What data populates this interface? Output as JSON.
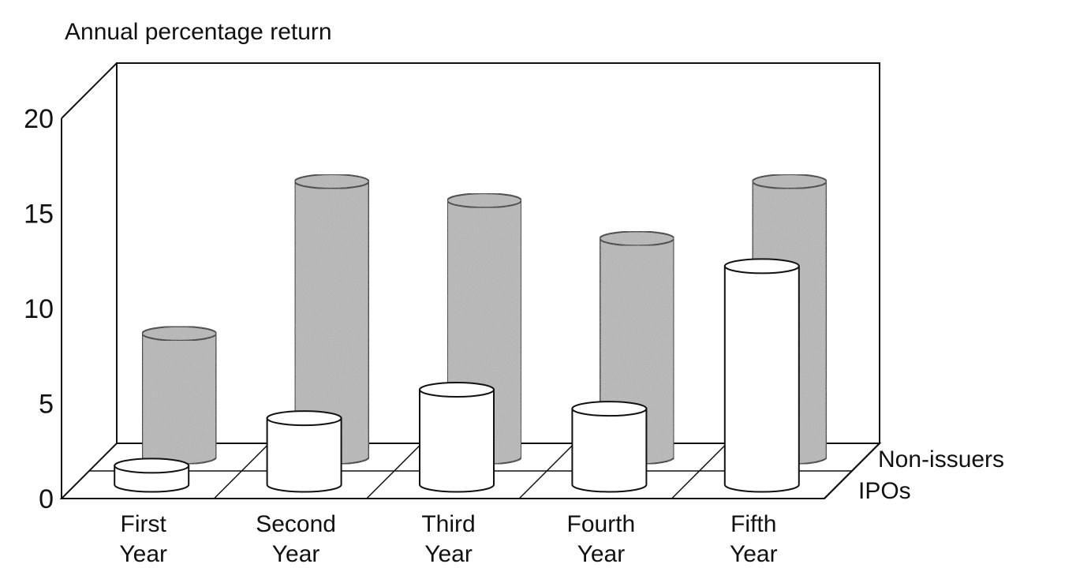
{
  "chart_data": {
    "type": "bar",
    "title": "",
    "ylabel": "Annual percentage return",
    "xlabel": "",
    "ylim": [
      0,
      20
    ],
    "yticks": [
      "0",
      "5",
      "10",
      "15",
      "20"
    ],
    "categories": [
      [
        "First",
        "Year"
      ],
      [
        "Second",
        "Year"
      ],
      [
        "Third",
        "Year"
      ],
      [
        "Fourth",
        "Year"
      ],
      [
        "Fifth",
        "Year"
      ]
    ],
    "series": [
      {
        "name": "Non-issuers",
        "values": [
          6.5,
          14.5,
          13.5,
          11.5,
          14.5
        ],
        "color": "#b8b8b8"
      },
      {
        "name": "IPOs",
        "values": [
          1.0,
          3.5,
          5.0,
          4.0,
          11.5
        ],
        "color": "#ffffff"
      }
    ],
    "grid": false,
    "style": "3d-cylinders"
  }
}
